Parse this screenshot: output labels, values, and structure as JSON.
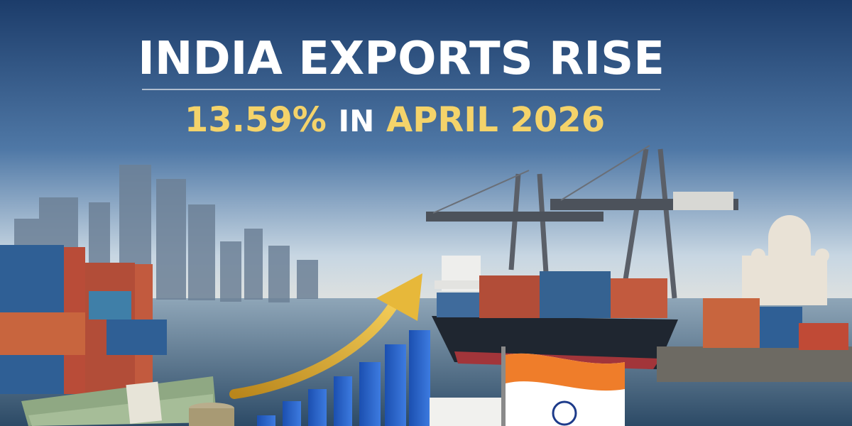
{
  "header": {
    "title": "INDIA EXPORTS RISE",
    "subtitle": [
      "13.59%",
      "IN",
      "APRIL 2026"
    ]
  }
}
